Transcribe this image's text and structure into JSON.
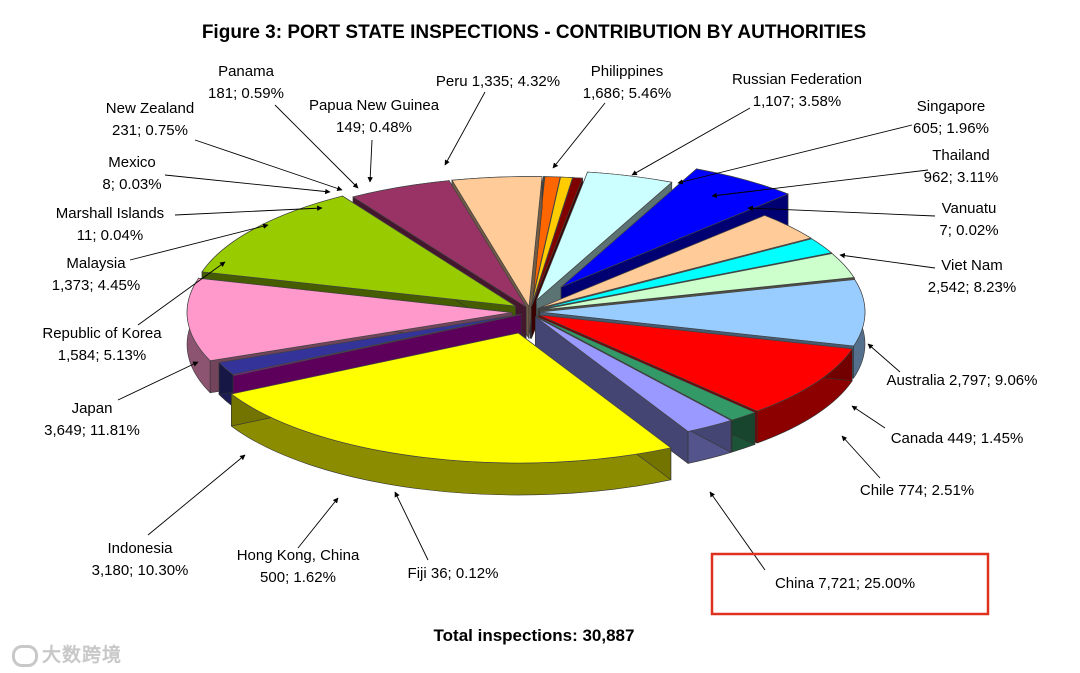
{
  "chart_data": {
    "type": "pie",
    "title": "Figure 3: PORT STATE INSPECTIONS - CONTRIBUTION BY AUTHORITIES",
    "total_label": "Total inspections: 30,887",
    "slices": [
      {
        "name": "China",
        "value": 7721,
        "pct": "25.00%",
        "label": "China 7,721; 25.00%",
        "color": "#ffff00",
        "highlighted": true
      },
      {
        "name": "Fiji",
        "value": 36,
        "pct": "0.12%",
        "label": "Fiji 36; 0.12%",
        "color": "#cc00cc"
      },
      {
        "name": "Hong Kong, China",
        "value": 500,
        "pct": "1.62%",
        "label": [
          "Hong Kong, China",
          "500; 1.62%"
        ],
        "color": "#333399"
      },
      {
        "name": "Indonesia",
        "value": 3180,
        "pct": "10.30%",
        "label": [
          "Indonesia",
          "3,180; 10.30%"
        ],
        "color": "#ff99cc"
      },
      {
        "name": "Japan",
        "value": 3649,
        "pct": "11.81%",
        "label": [
          "Japan",
          "3,649; 11.81%"
        ],
        "color": "#99cc00"
      },
      {
        "name": "Republic of Korea",
        "value": 1584,
        "pct": "5.13%",
        "label": [
          "Republic of Korea",
          "1,584; 5.13%"
        ],
        "color": "#993366"
      },
      {
        "name": "Malaysia",
        "value": 1373,
        "pct": "4.45%",
        "label": [
          "Malaysia",
          "1,373; 4.45%"
        ],
        "color": "#ffcc99"
      },
      {
        "name": "Marshall Islands",
        "value": 11,
        "pct": "0.04%",
        "label": [
          "Marshall Islands",
          "11; 0.04%"
        ],
        "color": "#666699"
      },
      {
        "name": "Mexico",
        "value": 8,
        "pct": "0.03%",
        "label": [
          "Mexico",
          "8; 0.03%"
        ],
        "color": "#0066cc"
      },
      {
        "name": "New Zealand",
        "value": 231,
        "pct": "0.75%",
        "label": [
          "New Zealand",
          "231; 0.75%"
        ],
        "color": "#ff6600"
      },
      {
        "name": "Panama",
        "value": 181,
        "pct": "0.59%",
        "label": [
          "Panama",
          "181; 0.59%"
        ],
        "color": "#ffcc00"
      },
      {
        "name": "Papua New Guinea",
        "value": 149,
        "pct": "0.48%",
        "label": [
          "Papua New Guinea",
          "149; 0.48%"
        ],
        "color": "#800000"
      },
      {
        "name": "Peru",
        "value": 1335,
        "pct": "4.32%",
        "label": "Peru 1,335; 4.32%",
        "color": "#ccffff"
      },
      {
        "name": "Philippines",
        "value": 1686,
        "pct": "5.46%",
        "label": [
          "Philippines",
          "1,686; 5.46%"
        ],
        "color": "#0000ff"
      },
      {
        "name": "Russian Federation",
        "value": 1107,
        "pct": "3.58%",
        "label": [
          "Russian Federation",
          "1,107; 3.58%"
        ],
        "color": "#ffcc99"
      },
      {
        "name": "Singapore",
        "value": 605,
        "pct": "1.96%",
        "label": [
          "Singapore",
          "605; 1.96%"
        ],
        "color": "#00ffff"
      },
      {
        "name": "Thailand",
        "value": 962,
        "pct": "3.11%",
        "label": [
          "Thailand",
          "962; 3.11%"
        ],
        "color": "#ccffcc"
      },
      {
        "name": "Vanuatu",
        "value": 7,
        "pct": "0.02%",
        "label": [
          "Vanuatu",
          "7; 0.02%"
        ],
        "color": "#cccc99"
      },
      {
        "name": "Viet Nam",
        "value": 2542,
        "pct": "8.23%",
        "label": [
          "Viet Nam",
          "2,542; 8.23%"
        ],
        "color": "#99ccff"
      },
      {
        "name": "Australia",
        "value": 2797,
        "pct": "9.06%",
        "label": "Australia 2,797; 9.06%",
        "color": "#ff0000"
      },
      {
        "name": "Canada",
        "value": 449,
        "pct": "1.45%",
        "label": "Canada 449; 1.45%",
        "color": "#339966"
      },
      {
        "name": "Chile",
        "value": 774,
        "pct": "2.51%",
        "label": "Chile 774; 2.51%",
        "color": "#9999ff"
      }
    ]
  },
  "watermark": "大数跨境"
}
